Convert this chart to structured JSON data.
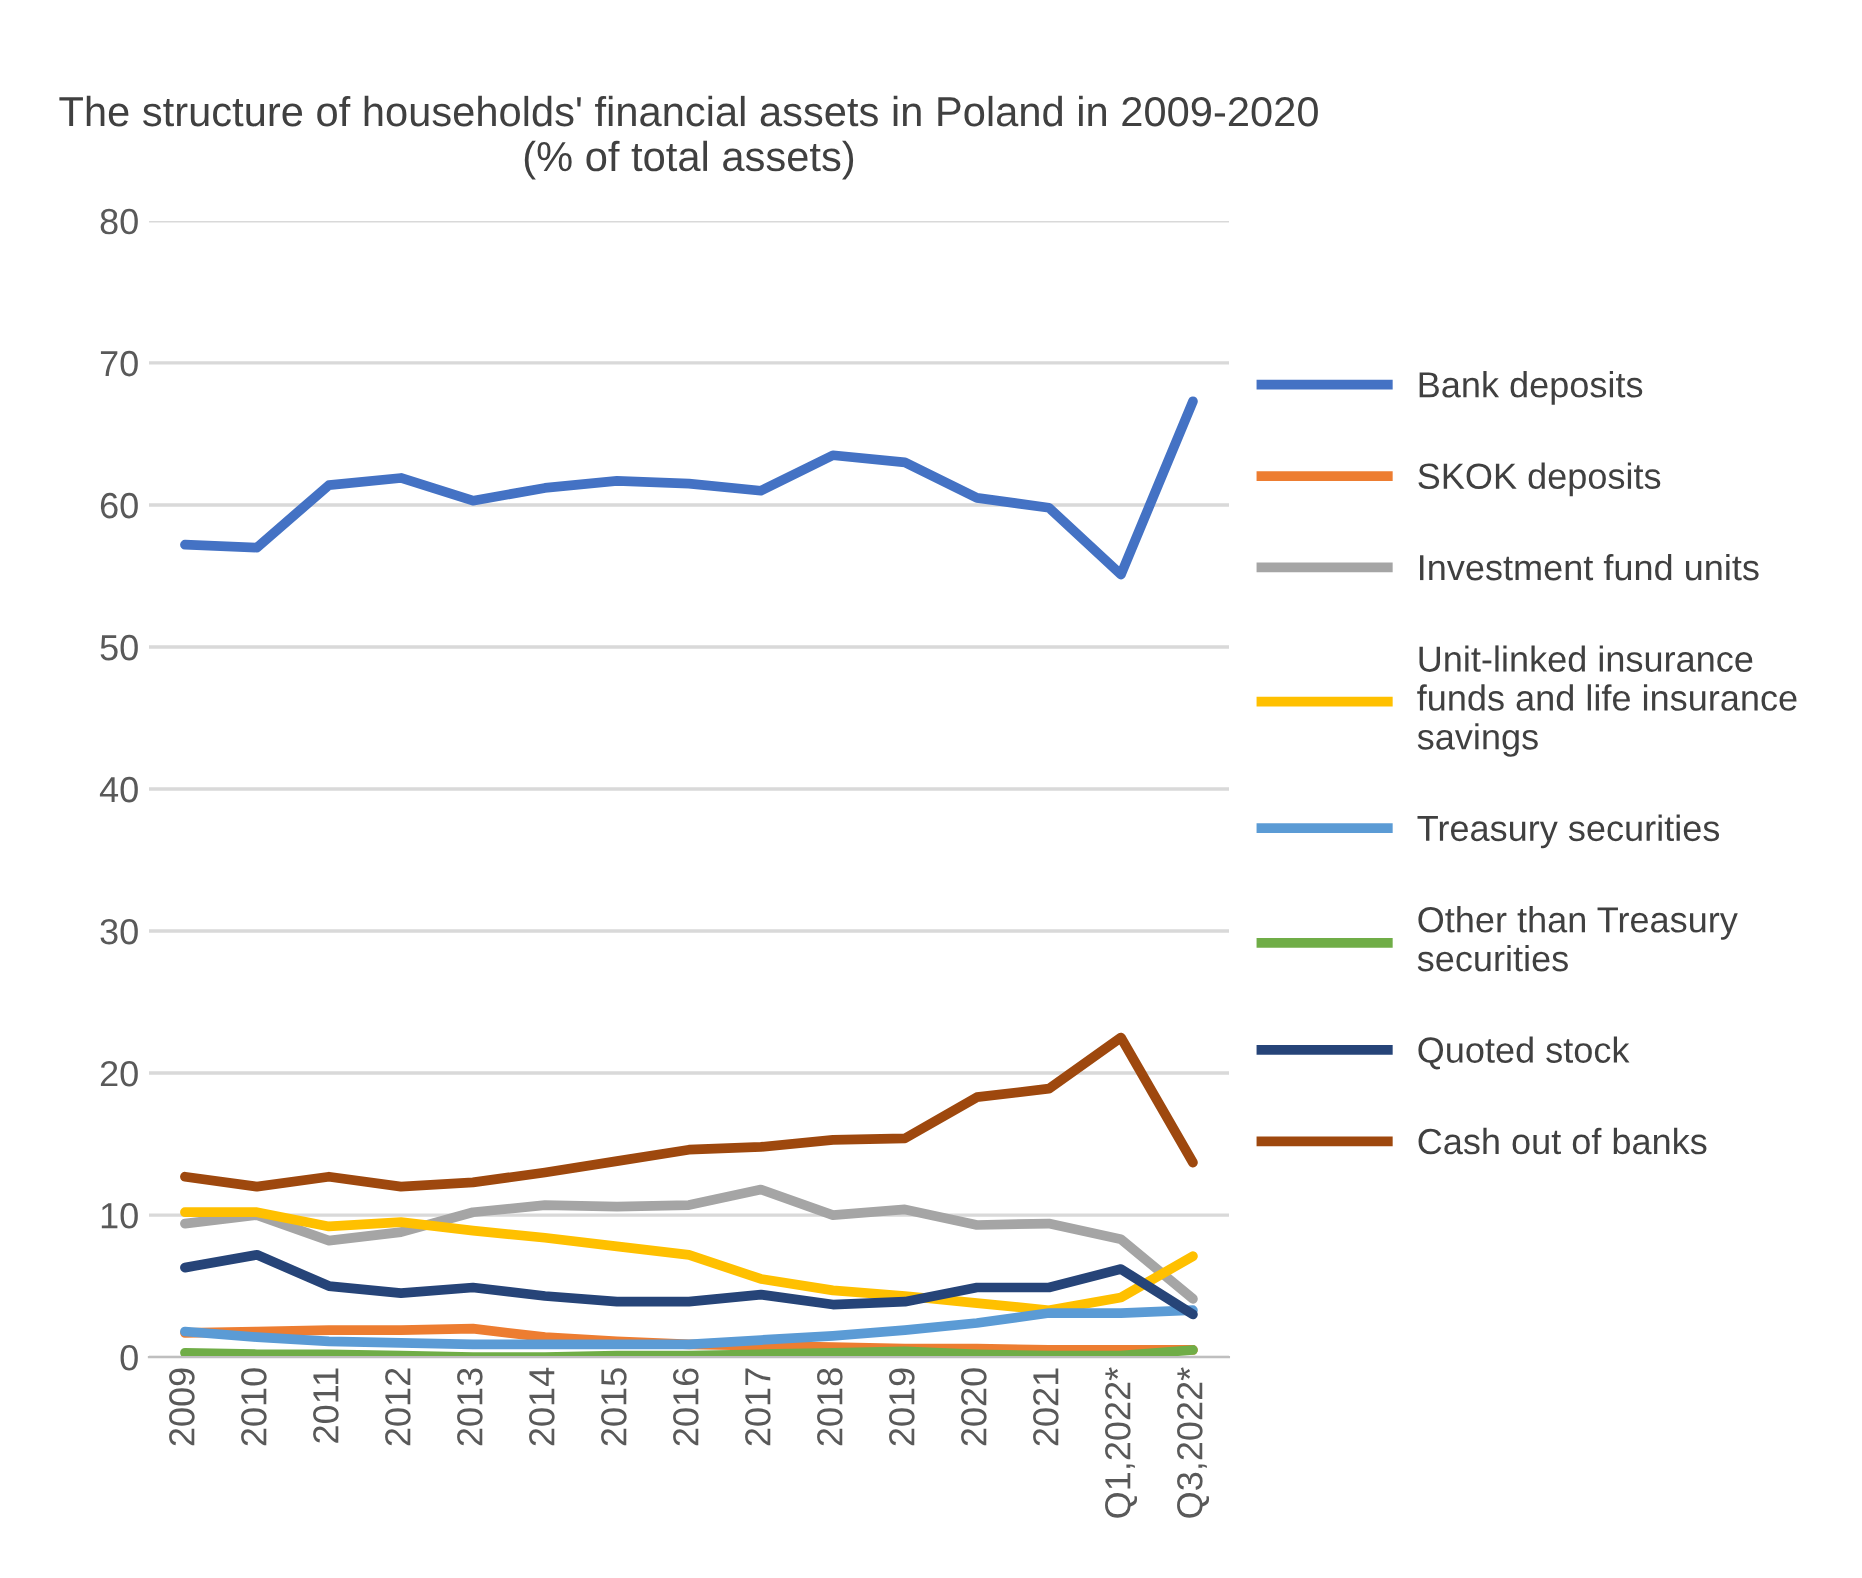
{
  "chart_data": {
    "type": "line",
    "title": "The structure of households' financial assets in Poland in 2009-2020\n(% of total assets)",
    "categories": [
      "2009",
      "2010",
      "2011",
      "2012",
      "2013",
      "2014",
      "2015",
      "2016",
      "2017",
      "2018",
      "2019",
      "2020",
      "2021",
      "Q1,2022*",
      "Q3,2022*"
    ],
    "series": [
      {
        "name": "Bank deposits",
        "color": "#4472c4",
        "values": [
          57.2,
          57.0,
          61.4,
          61.9,
          60.3,
          61.2,
          61.7,
          61.5,
          61.0,
          63.5,
          63.0,
          60.5,
          59.8,
          55.1,
          67.3
        ]
      },
      {
        "name": "SKOK deposits",
        "color": "#ed7d31",
        "values": [
          1.7,
          1.8,
          1.9,
          1.9,
          2.0,
          1.4,
          1.1,
          0.9,
          0.8,
          0.7,
          0.6,
          0.6,
          0.5,
          0.5,
          0.5
        ]
      },
      {
        "name": "Investment fund units",
        "color": "#a5a5a5",
        "values": [
          9.4,
          10.0,
          8.2,
          8.8,
          10.2,
          10.7,
          10.6,
          10.7,
          11.8,
          10.0,
          10.4,
          9.3,
          9.4,
          8.3,
          4.1
        ]
      },
      {
        "name": "Unit-linked insurance\nfunds and life insurance\nsavings",
        "color": "#ffc000",
        "values": [
          10.2,
          10.2,
          9.2,
          9.5,
          8.9,
          8.4,
          7.8,
          7.2,
          5.5,
          4.7,
          4.3,
          3.8,
          3.3,
          4.2,
          7.1
        ]
      },
      {
        "name": "Treasury securities",
        "color": "#5b9bd5",
        "values": [
          1.8,
          1.4,
          1.1,
          1.0,
          0.9,
          0.9,
          0.9,
          0.9,
          1.2,
          1.5,
          1.9,
          2.4,
          3.1,
          3.1,
          3.3
        ]
      },
      {
        "name": "Other than Treasury\nsecurities",
        "color": "#70ad47",
        "values": [
          0.3,
          0.2,
          0.2,
          0.1,
          0.0,
          0.0,
          0.1,
          0.1,
          0.2,
          0.3,
          0.4,
          0.2,
          0.1,
          0.1,
          0.5
        ]
      },
      {
        "name": "Quoted stock",
        "color": "#264478",
        "values": [
          6.3,
          7.2,
          5.0,
          4.5,
          4.9,
          4.3,
          3.9,
          3.9,
          4.4,
          3.7,
          3.9,
          4.9,
          4.9,
          6.2,
          3.0
        ]
      },
      {
        "name": "Cash out of banks",
        "color": "#9e480e",
        "values": [
          12.7,
          12.0,
          12.7,
          12.0,
          12.3,
          13.0,
          13.8,
          14.6,
          14.8,
          15.3,
          15.4,
          18.3,
          18.9,
          22.5,
          13.7
        ]
      }
    ],
    "ylim": [
      0,
      80
    ],
    "yticks": [
      0,
      10,
      20,
      30,
      40,
      50,
      60,
      70,
      80
    ],
    "grid": "y",
    "legend": "right",
    "marker": "none",
    "line_style": "solid"
  }
}
